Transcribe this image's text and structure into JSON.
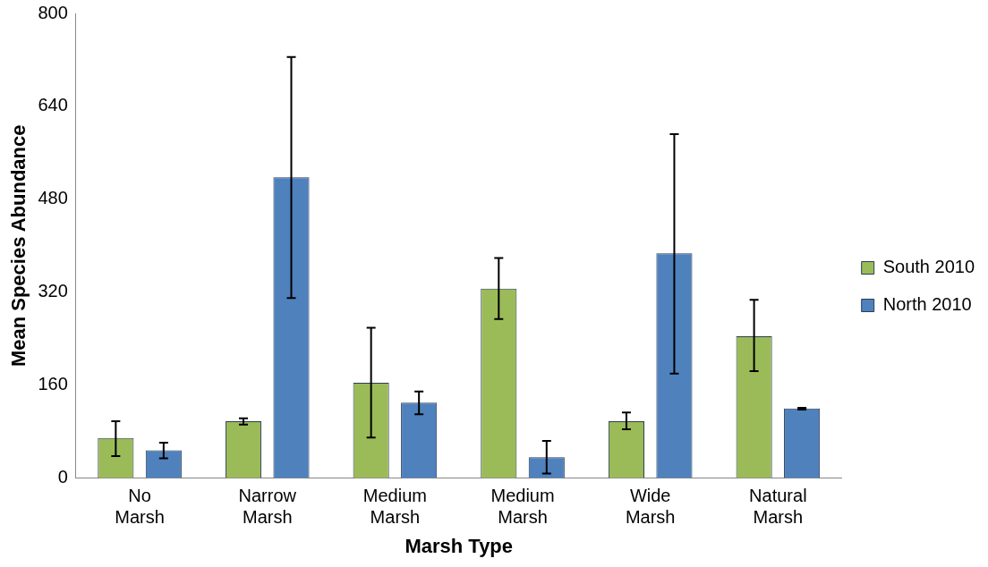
{
  "chart_data": {
    "type": "bar",
    "xlabel": "Marsh Type",
    "ylabel": "Mean Species Abundance",
    "categories": [
      "No Marsh",
      "Narrow Marsh",
      "Medium Marsh",
      "Medium Marsh",
      "Wide Marsh",
      "Natural Marsh"
    ],
    "series": [
      {
        "name": "South 2010",
        "color": "#9bbb59",
        "values": [
          69,
          98,
          164,
          326,
          98,
          244
        ],
        "errors": [
          [
            38,
            98
          ],
          [
            92,
            103
          ],
          [
            70,
            259
          ],
          [
            274,
            379
          ],
          [
            84,
            113
          ],
          [
            184,
            307
          ]
        ]
      },
      {
        "name": "North 2010",
        "color": "#4f81bd",
        "values": [
          48,
          518,
          130,
          36,
          387,
          120
        ],
        "errors": [
          [
            34,
            61
          ],
          [
            310,
            725
          ],
          [
            110,
            149
          ],
          [
            8,
            64
          ],
          [
            180,
            592
          ],
          [
            118,
            121
          ]
        ]
      }
    ],
    "ylim": [
      0,
      800
    ],
    "yticks": [
      0,
      160,
      320,
      480,
      640,
      800
    ],
    "grid": false,
    "legend": "right"
  }
}
